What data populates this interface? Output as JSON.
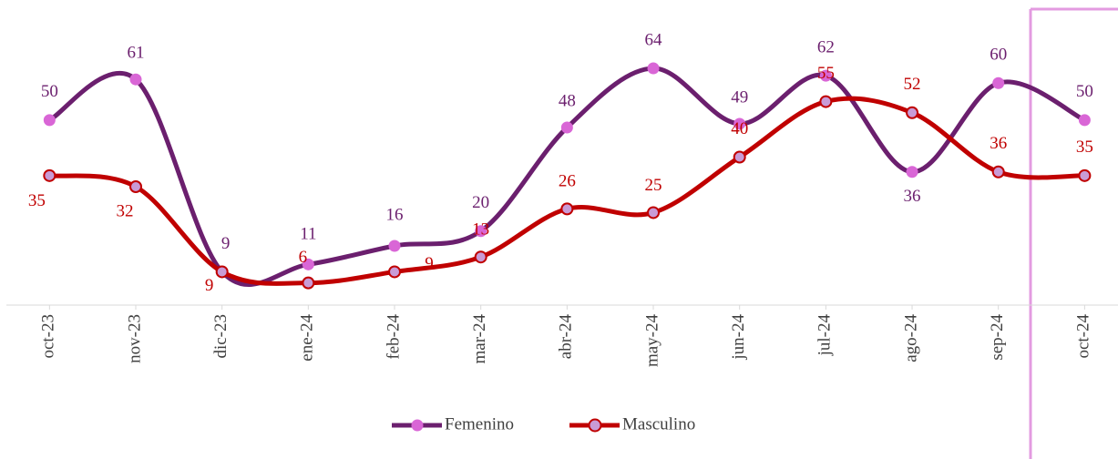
{
  "chart_data": {
    "type": "line",
    "categories": [
      "oct-23",
      "nov-23",
      "dic-23",
      "ene-24",
      "feb-24",
      "mar-24",
      "abr-24",
      "may-24",
      "jun-24",
      "jul-24",
      "ago-24",
      "sep-24",
      "oct-24"
    ],
    "series": [
      {
        "name": "Femenino",
        "color": "#6b1f6e",
        "marker_color": "#d966d6",
        "values": [
          50,
          61,
          9,
          11,
          16,
          20,
          48,
          64,
          49,
          62,
          36,
          60,
          50
        ]
      },
      {
        "name": "Masculino",
        "color": "#c00000",
        "marker_color": "#c99bd6",
        "values": [
          35,
          32,
          9,
          6,
          9,
          13,
          26,
          25,
          40,
          55,
          52,
          36,
          35
        ]
      }
    ],
    "ylim": [
      0,
      80
    ],
    "legend": "bottom"
  }
}
